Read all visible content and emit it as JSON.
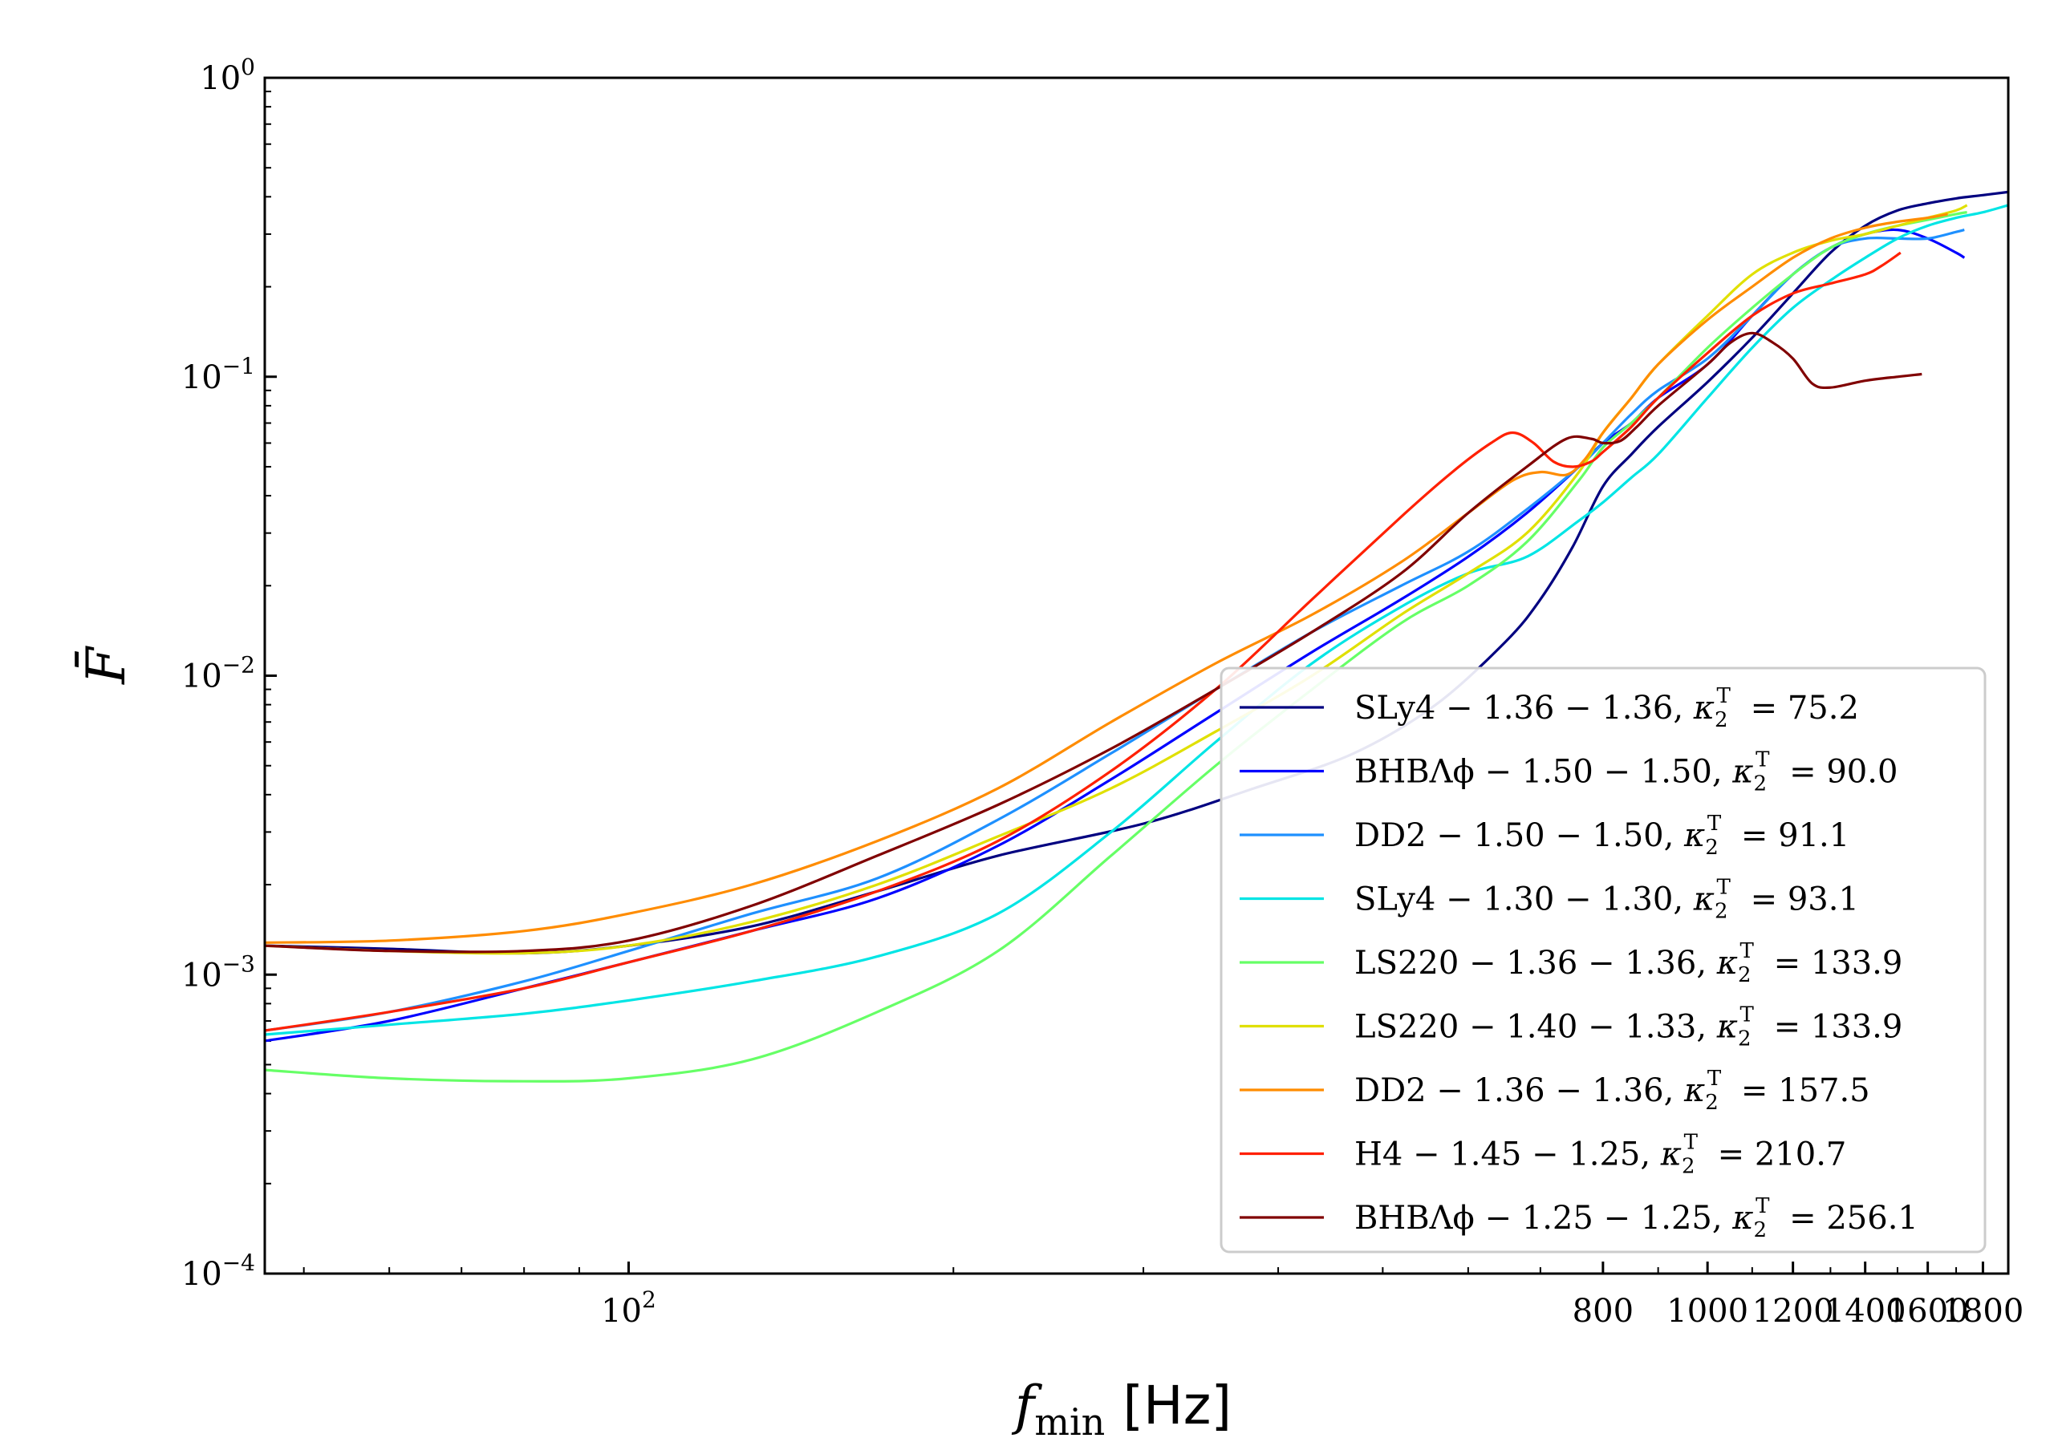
{
  "chart_data": {
    "type": "line",
    "title": "",
    "xlabel": "f_min [Hz]",
    "xlabel_main": "f",
    "xlabel_sub": "min",
    "xlabel_unit": "[Hz]",
    "ylabel": "F̄",
    "xscale": "log",
    "yscale": "log",
    "xlim": [
      46,
      1900
    ],
    "ylim": [
      0.0001,
      1
    ],
    "grid": false,
    "legend_position": "lower-right",
    "x_ticks": [
      {
        "value": 100,
        "base": "10",
        "exp": "2"
      },
      {
        "value": 800,
        "label": "800"
      },
      {
        "value": 1000,
        "label": "1000"
      },
      {
        "value": 1200,
        "label": "1200"
      },
      {
        "value": 1400,
        "label": "1400"
      },
      {
        "value": 1600,
        "label": "1600"
      },
      {
        "value": 1800,
        "label": "1800"
      }
    ],
    "y_ticks": [
      {
        "value": 1,
        "base": "10",
        "exp": "0"
      },
      {
        "value": 0.1,
        "base": "10",
        "exp": "−1"
      },
      {
        "value": 0.01,
        "base": "10",
        "exp": "−2"
      },
      {
        "value": 0.001,
        "base": "10",
        "exp": "−3"
      },
      {
        "value": 0.0001,
        "base": "10",
        "exp": "−4"
      }
    ],
    "series": [
      {
        "name": "SLy4 − 1.36 − 1.36, κ₂ᵀ = 75.2",
        "eos": "SLy4 − 1.36 − 1.36, ",
        "kappa": "= 75.2",
        "color": "#000080",
        "x": [
          46,
          60,
          80,
          100,
          130,
          170,
          220,
          300,
          380,
          470,
          560,
          650,
          700,
          750,
          800,
          850,
          900,
          1000,
          1100,
          1200,
          1300,
          1400,
          1500,
          1600,
          1700,
          1800,
          1900
        ],
        "y": [
          0.00125,
          0.00122,
          0.00118,
          0.00125,
          0.00145,
          0.0019,
          0.0025,
          0.0032,
          0.0042,
          0.0055,
          0.008,
          0.013,
          0.018,
          0.027,
          0.043,
          0.055,
          0.068,
          0.096,
          0.135,
          0.19,
          0.26,
          0.32,
          0.36,
          0.38,
          0.395,
          0.405,
          0.415
        ]
      },
      {
        "name": "BHBΛφ − 1.50 − 1.50, κ₂ᵀ = 90.0",
        "eos": "BHBΛϕ − 1.50 − 1.50, ",
        "kappa": "= 90.0",
        "color": "#0000ff",
        "x": [
          46,
          60,
          80,
          100,
          130,
          170,
          220,
          280,
          350,
          430,
          520,
          600,
          680,
          760,
          800,
          850,
          900,
          1000,
          1100,
          1200,
          1300,
          1400,
          1500,
          1600,
          1700,
          1730
        ],
        "y": [
          0.0006,
          0.0007,
          0.0009,
          0.0011,
          0.0014,
          0.0018,
          0.0027,
          0.0045,
          0.0075,
          0.012,
          0.018,
          0.025,
          0.035,
          0.05,
          0.06,
          0.07,
          0.085,
          0.11,
          0.16,
          0.22,
          0.27,
          0.3,
          0.31,
          0.29,
          0.26,
          0.25
        ]
      },
      {
        "name": "DD2 − 1.50 − 1.50, κ₂ᵀ = 91.1",
        "eos": "DD2 − 1.50 − 1.50, ",
        "kappa": "= 91.1",
        "color": "#1e90ff",
        "x": [
          46,
          60,
          80,
          100,
          130,
          170,
          220,
          280,
          350,
          430,
          520,
          600,
          680,
          760,
          800,
          850,
          900,
          1000,
          1100,
          1200,
          1300,
          1400,
          1500,
          1600,
          1700,
          1730
        ],
        "y": [
          0.00065,
          0.00075,
          0.00095,
          0.0012,
          0.0016,
          0.0021,
          0.0033,
          0.0055,
          0.009,
          0.014,
          0.02,
          0.026,
          0.036,
          0.05,
          0.06,
          0.075,
          0.09,
          0.115,
          0.16,
          0.22,
          0.27,
          0.29,
          0.29,
          0.29,
          0.305,
          0.31
        ]
      },
      {
        "name": "SLy4 − 1.30 − 1.30, κ₂ᵀ = 93.1",
        "eos": "SLy4 − 1.30 − 1.30, ",
        "kappa": "= 93.1",
        "color": "#00e5e5",
        "x": [
          46,
          60,
          80,
          100,
          130,
          170,
          220,
          280,
          350,
          430,
          520,
          600,
          680,
          760,
          800,
          850,
          900,
          1000,
          1100,
          1200,
          1300,
          1400,
          1500,
          1600,
          1700,
          1800,
          1900
        ],
        "y": [
          0.00063,
          0.00068,
          0.00074,
          0.00082,
          0.00095,
          0.00115,
          0.0016,
          0.003,
          0.006,
          0.011,
          0.017,
          0.022,
          0.025,
          0.033,
          0.038,
          0.046,
          0.055,
          0.085,
          0.125,
          0.17,
          0.21,
          0.25,
          0.29,
          0.32,
          0.34,
          0.355,
          0.375
        ]
      },
      {
        "name": "LS220 − 1.36 − 1.36, κ₂ᵀ = 133.9",
        "eos": "LS220 − 1.36 − 1.36, ",
        "kappa": "= 133.9",
        "color": "#66ff66",
        "x": [
          46,
          60,
          80,
          100,
          130,
          170,
          220,
          280,
          350,
          430,
          520,
          600,
          680,
          760,
          800,
          850,
          900,
          1000,
          1100,
          1200,
          1300,
          1400,
          1500,
          1600,
          1700,
          1740
        ],
        "y": [
          0.00048,
          0.00045,
          0.00044,
          0.00045,
          0.00052,
          0.00075,
          0.0012,
          0.0025,
          0.005,
          0.009,
          0.015,
          0.02,
          0.028,
          0.045,
          0.058,
          0.07,
          0.085,
          0.125,
          0.17,
          0.22,
          0.27,
          0.3,
          0.32,
          0.335,
          0.35,
          0.355
        ]
      },
      {
        "name": "LS220 − 1.40 − 1.33, κ₂ᵀ = 133.9",
        "eos": "LS220 − 1.40 − 1.33, ",
        "kappa": "= 133.9",
        "color": "#e0e000",
        "x": [
          46,
          60,
          80,
          100,
          130,
          170,
          220,
          280,
          350,
          430,
          520,
          600,
          680,
          760,
          800,
          850,
          900,
          1000,
          1100,
          1200,
          1300,
          1400,
          1500,
          1600,
          1700,
          1740
        ],
        "y": [
          0.00125,
          0.0012,
          0.00118,
          0.00125,
          0.0015,
          0.002,
          0.0029,
          0.0042,
          0.0065,
          0.01,
          0.016,
          0.022,
          0.03,
          0.048,
          0.065,
          0.085,
          0.11,
          0.16,
          0.22,
          0.26,
          0.285,
          0.3,
          0.32,
          0.34,
          0.36,
          0.375
        ]
      },
      {
        "name": "DD2 − 1.36 − 1.36, κ₂ᵀ = 157.5",
        "eos": "DD2 − 1.36 − 1.36, ",
        "kappa": "= 157.5",
        "color": "#ff8c00",
        "x": [
          46,
          60,
          80,
          100,
          130,
          170,
          220,
          280,
          350,
          430,
          520,
          600,
          660,
          700,
          740,
          770,
          800,
          850,
          900,
          1000,
          1100,
          1200,
          1300,
          1400,
          1500,
          1600,
          1670
        ],
        "y": [
          0.00128,
          0.0013,
          0.0014,
          0.0016,
          0.002,
          0.0028,
          0.0042,
          0.007,
          0.011,
          0.016,
          0.024,
          0.035,
          0.045,
          0.048,
          0.047,
          0.053,
          0.065,
          0.085,
          0.11,
          0.155,
          0.2,
          0.25,
          0.29,
          0.315,
          0.33,
          0.34,
          0.35
        ]
      },
      {
        "name": "H4 − 1.45 − 1.25, κ₂ᵀ = 210.7",
        "eos": "H4 − 1.45 − 1.25, ",
        "kappa": "= 210.7",
        "color": "#ff2000",
        "x": [
          46,
          60,
          80,
          100,
          130,
          170,
          220,
          280,
          350,
          430,
          520,
          580,
          630,
          660,
          690,
          720,
          750,
          780,
          800,
          850,
          900,
          1000,
          1100,
          1200,
          1300,
          1400,
          1450,
          1510
        ],
        "y": [
          0.00065,
          0.00075,
          0.0009,
          0.0011,
          0.0014,
          0.0019,
          0.0028,
          0.0048,
          0.009,
          0.018,
          0.034,
          0.048,
          0.06,
          0.065,
          0.06,
          0.052,
          0.05,
          0.052,
          0.056,
          0.068,
          0.085,
          0.12,
          0.16,
          0.19,
          0.205,
          0.22,
          0.235,
          0.26
        ]
      },
      {
        "name": "BHBΛφ − 1.25 − 1.25, κ₂ᵀ = 256.1",
        "eos": "BHBΛϕ − 1.25 − 1.25, ",
        "kappa": "= 256.1",
        "color": "#800000",
        "x": [
          46,
          60,
          80,
          100,
          130,
          170,
          220,
          280,
          350,
          430,
          520,
          600,
          680,
          740,
          780,
          800,
          830,
          860,
          900,
          1000,
          1050,
          1100,
          1150,
          1200,
          1250,
          1300,
          1400,
          1500,
          1580
        ],
        "y": [
          0.00125,
          0.0012,
          0.0012,
          0.0013,
          0.0017,
          0.0025,
          0.0037,
          0.0057,
          0.009,
          0.014,
          0.022,
          0.035,
          0.05,
          0.062,
          0.062,
          0.06,
          0.061,
          0.068,
          0.08,
          0.11,
          0.13,
          0.14,
          0.13,
          0.115,
          0.095,
          0.092,
          0.097,
          0.1,
          0.102
        ]
      }
    ]
  }
}
